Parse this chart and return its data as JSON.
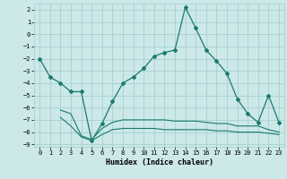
{
  "bg_color": "#cce8e8",
  "line_color": "#1a7a6e",
  "grid_color": "#a0cccc",
  "xlim": [
    -0.5,
    23.5
  ],
  "ylim": [
    -9.2,
    2.5
  ],
  "yticks": [
    2,
    1,
    0,
    -1,
    -2,
    -3,
    -4,
    -5,
    -6,
    -7,
    -8,
    -9
  ],
  "xticks": [
    0,
    1,
    2,
    3,
    4,
    5,
    6,
    7,
    8,
    9,
    10,
    11,
    12,
    13,
    14,
    15,
    16,
    17,
    18,
    19,
    20,
    21,
    22,
    23
  ],
  "xlabel": "Humidex (Indice chaleur)",
  "line1_x": [
    0,
    1,
    2,
    3,
    4,
    5,
    6,
    7,
    8,
    9,
    10,
    11,
    12,
    13,
    14,
    15,
    16,
    17,
    18,
    19,
    20,
    21,
    22,
    23
  ],
  "line1_y": [
    -2.0,
    -3.5,
    -4.0,
    -4.7,
    -4.7,
    -8.7,
    -7.3,
    -5.5,
    -4.0,
    -3.5,
    -2.8,
    -1.8,
    -1.5,
    -1.3,
    2.2,
    0.5,
    -1.3,
    -2.2,
    -3.2,
    -5.3,
    -6.5,
    -7.2,
    -5.0,
    -7.2
  ],
  "line2_x": [
    2,
    3,
    4,
    5,
    6,
    7,
    8,
    9,
    10,
    11,
    12,
    13,
    14,
    15,
    16,
    17,
    18,
    19,
    20,
    21,
    22,
    23
  ],
  "line2_y": [
    -6.2,
    -6.5,
    -8.3,
    -8.6,
    -7.7,
    -7.2,
    -7.0,
    -7.0,
    -7.0,
    -7.0,
    -7.0,
    -7.1,
    -7.1,
    -7.1,
    -7.2,
    -7.3,
    -7.3,
    -7.5,
    -7.5,
    -7.5,
    -7.8,
    -8.0
  ],
  "line3_x": [
    2,
    3,
    4,
    5,
    6,
    7,
    8,
    9,
    10,
    11,
    12,
    13,
    14,
    15,
    16,
    17,
    18,
    19,
    20,
    21,
    22,
    23
  ],
  "line3_y": [
    -6.8,
    -7.5,
    -8.4,
    -8.7,
    -8.2,
    -7.8,
    -7.7,
    -7.7,
    -7.7,
    -7.7,
    -7.8,
    -7.8,
    -7.8,
    -7.8,
    -7.8,
    -7.9,
    -7.9,
    -8.0,
    -8.0,
    -8.0,
    -8.1,
    -8.2
  ]
}
